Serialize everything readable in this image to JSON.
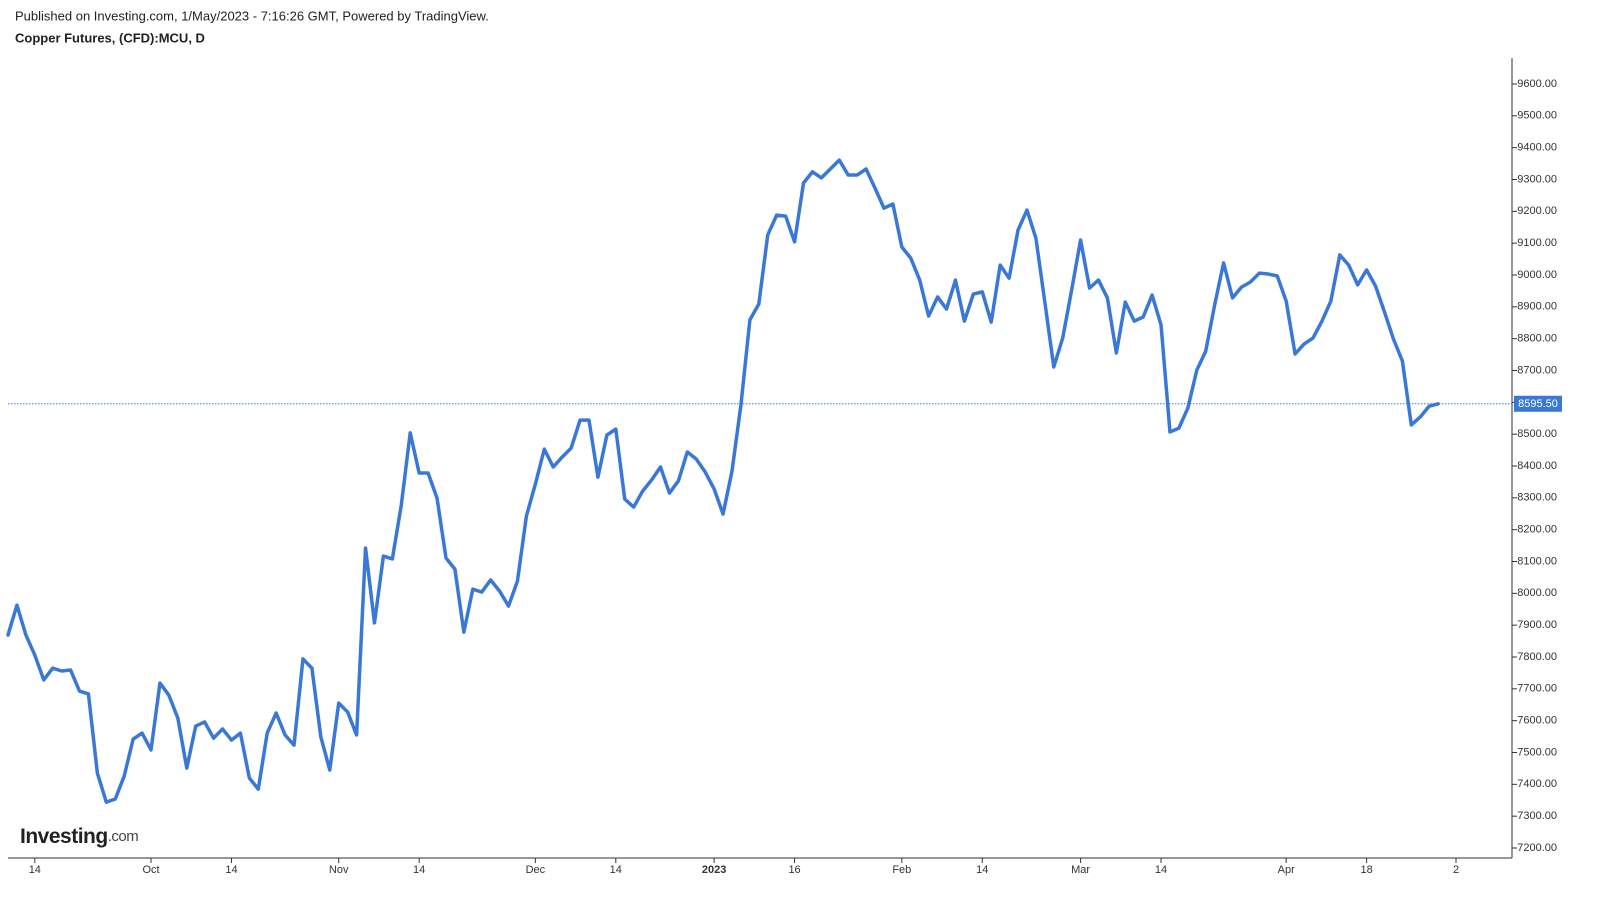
{
  "chart_data": {
    "type": "line",
    "subtitle": "Published on Investing.com, 1/May/2023 - 7:16:26 GMT, Powered by TradingView.",
    "title": "Copper Futures, (CFD):MCU, D",
    "logo": {
      "name": "Investing",
      "suffix": ".com"
    },
    "color": "#3a78d8",
    "categories": [
      null,
      null,
      null,
      "14",
      null,
      null,
      null,
      null,
      null,
      null,
      null,
      null,
      null,
      null,
      null,
      null,
      "Oct",
      null,
      null,
      null,
      null,
      null,
      null,
      null,
      null,
      "14",
      null,
      null,
      null,
      null,
      null,
      null,
      null,
      null,
      null,
      null,
      null,
      "Nov",
      null,
      null,
      null,
      null,
      null,
      null,
      null,
      null,
      "14",
      null,
      null,
      null,
      null,
      null,
      null,
      null,
      null,
      null,
      null,
      null,
      null,
      "Dec",
      null,
      null,
      null,
      null,
      null,
      null,
      null,
      null,
      "14",
      null,
      null,
      null,
      null,
      null,
      null,
      null,
      null,
      null,
      null,
      "2023",
      null,
      null,
      null,
      null,
      null,
      null,
      null,
      null,
      "16",
      null,
      null,
      null,
      null,
      null,
      null,
      null,
      null,
      null,
      null,
      null,
      "Feb",
      null,
      null,
      null,
      null,
      null,
      null,
      null,
      null,
      "14",
      null,
      null,
      null,
      null,
      null,
      null,
      null,
      null,
      null,
      null,
      "Mar",
      null,
      null,
      null,
      null,
      null,
      null,
      null,
      null,
      "14",
      null,
      null,
      null,
      null,
      null,
      null,
      null,
      null,
      null,
      null,
      null,
      null,
      null,
      "Apr",
      null,
      null,
      null,
      null,
      null,
      null,
      null,
      null,
      "18",
      null,
      null,
      null,
      null,
      null,
      null,
      null,
      null,
      null,
      "2"
    ],
    "values": [
      7869,
      7963,
      7869,
      7806,
      7728,
      7765,
      7756,
      7759,
      7693,
      7684,
      7435,
      7344,
      7354,
      7426,
      7542,
      7561,
      7508,
      7718,
      7680,
      7608,
      7451,
      7583,
      7596,
      7545,
      7574,
      7539,
      7561,
      7420,
      7385,
      7561,
      7624,
      7555,
      7523,
      7794,
      7765,
      7549,
      7445,
      7655,
      7627,
      7555,
      8142,
      7907,
      8117,
      8108,
      8277,
      8504,
      8378,
      8378,
      8299,
      8111,
      8076,
      7878,
      8013,
      8004,
      8042,
      8007,
      7960,
      8039,
      8243,
      8343,
      8453,
      8397,
      8428,
      8456,
      8544,
      8544,
      8365,
      8497,
      8516,
      8296,
      8271,
      8321,
      8356,
      8397,
      8315,
      8353,
      8444,
      8422,
      8381,
      8328,
      8249,
      8384,
      8592,
      8859,
      8909,
      9126,
      9188,
      9185,
      9104,
      9289,
      9324,
      9305,
      9333,
      9361,
      9314,
      9314,
      9333,
      9273,
      9210,
      9223,
      9088,
      9053,
      8984,
      8871,
      8931,
      8893,
      8984,
      8855,
      8940,
      8947,
      8852,
      9031,
      8990,
      9141,
      9204,
      9116,
      8915,
      8711,
      8802,
      8953,
      9110,
      8959,
      8984,
      8928,
      8755,
      8915,
      8855,
      8868,
      8937,
      8843,
      8507,
      8519,
      8582,
      8701,
      8761,
      8906,
      9038,
      8928,
      8962,
      8978,
      9006,
      9003,
      8997,
      8918,
      8752,
      8783,
      8802,
      8855,
      8918,
      9063,
      9031,
      8969,
      9016,
      8965,
      8884,
      8799,
      8730,
      8529,
      8554,
      8588,
      8595.5,
      null,
      null
    ],
    "last_price": {
      "value": 8595.5,
      "label": "8595.50"
    },
    "ylim": [
      7200,
      9600
    ],
    "yticks": [
      {
        "value": 7200,
        "label": "7200.00"
      },
      {
        "value": 7300,
        "label": "7300.00"
      },
      {
        "value": 7400,
        "label": "7400.00"
      },
      {
        "value": 7500,
        "label": "7500.00"
      },
      {
        "value": 7600,
        "label": "7600.00"
      },
      {
        "value": 7700,
        "label": "7700.00"
      },
      {
        "value": 7800,
        "label": "7800.00"
      },
      {
        "value": 7900,
        "label": "7900.00"
      },
      {
        "value": 8000,
        "label": "8000.00"
      },
      {
        "value": 8100,
        "label": "8100.00"
      },
      {
        "value": 8200,
        "label": "8200.00"
      },
      {
        "value": 8300,
        "label": "8300.00"
      },
      {
        "value": 8400,
        "label": "8400.00"
      },
      {
        "value": 8500,
        "label": "8500.00"
      },
      {
        "value": 8600,
        "label": "8600.00"
      },
      {
        "value": 8700,
        "label": "8700.00"
      },
      {
        "value": 8800,
        "label": "8800.00"
      },
      {
        "value": 8900,
        "label": "8900.00"
      },
      {
        "value": 9000,
        "label": "9000.00"
      },
      {
        "value": 9100,
        "label": "9100.00"
      },
      {
        "value": 9200,
        "label": "9200.00"
      },
      {
        "value": 9300,
        "label": "9300.00"
      },
      {
        "value": 9400,
        "label": "9400.00"
      },
      {
        "value": 9500,
        "label": "9500.00"
      },
      {
        "value": 9600,
        "label": "9600.00"
      }
    ],
    "grid": false
  }
}
